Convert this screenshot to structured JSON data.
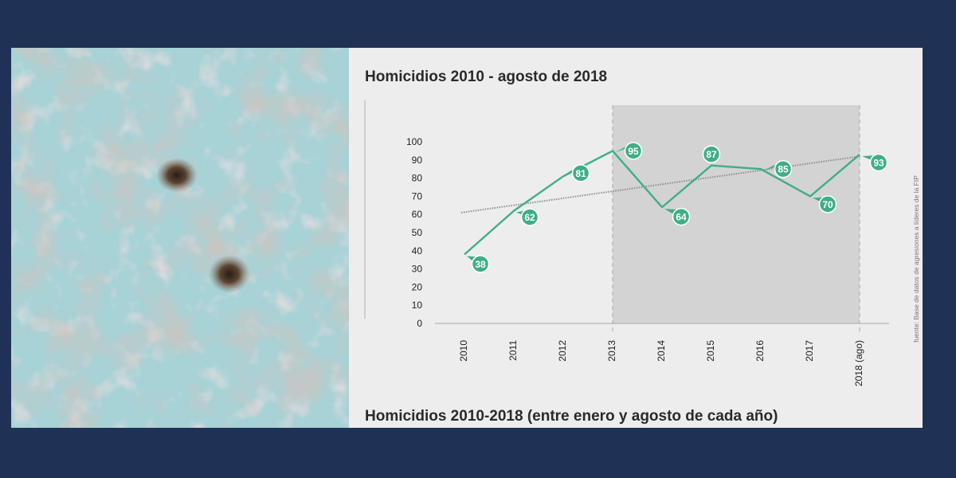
{
  "colors": {
    "frame": "#1f3154",
    "panel": "#ededed",
    "shade": "#d3d3d3",
    "line": "#3fae86",
    "trend": "#8f8f8f"
  },
  "photo": {
    "icon": "cracked-wall-with-bullet-holes"
  },
  "source_note": "fuente: Base de datos de agresiones a líderes de la FIP",
  "chart_data": {
    "type": "line",
    "title": "Homicidios 2010 - agosto de 2018",
    "subtitle": "Homicidios 2010-2018 (entre enero y agosto de cada año)",
    "categories": [
      "2010",
      "2011",
      "2012",
      "2013",
      "2014",
      "2015",
      "2016",
      "2017",
      "2018 (ago)"
    ],
    "series": [
      {
        "values": [
          38,
          62,
          81,
          95,
          64,
          87,
          85,
          70,
          93
        ],
        "color": "#3fae86"
      }
    ],
    "trendline": {
      "start": 61,
      "end": 92,
      "color": "#8f8f8f",
      "style": "dotted"
    },
    "shaded_range": [
      "2013",
      "2018 (ago)"
    ],
    "yticks": [
      0,
      10,
      20,
      30,
      40,
      50,
      60,
      70,
      80,
      90,
      100
    ],
    "ylim": [
      0,
      100
    ],
    "xlabel": "",
    "ylabel": "",
    "grid": false,
    "legend": "none"
  }
}
